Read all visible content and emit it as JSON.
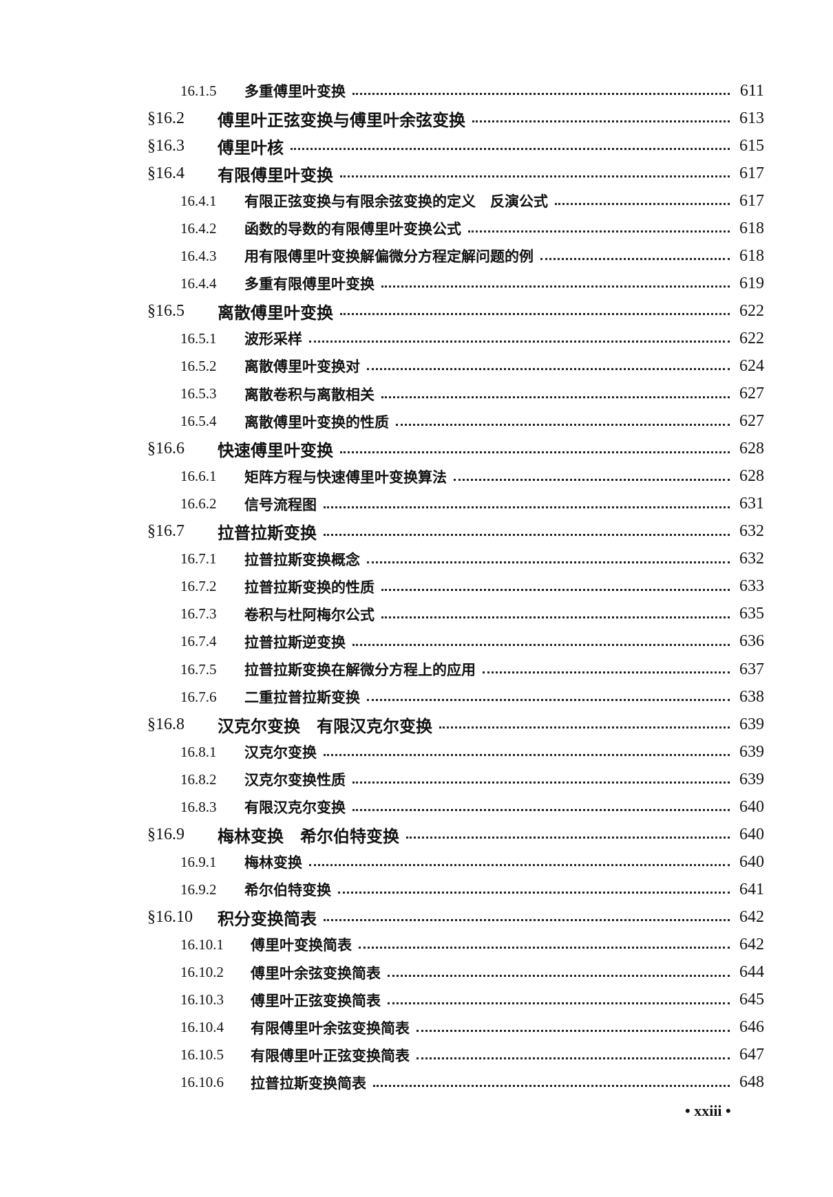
{
  "toc": [
    {
      "level": "sub",
      "num": "16.1.5",
      "title": "多重傅里叶变换",
      "page": "611"
    },
    {
      "level": "section",
      "num": "§16.2",
      "title": "傅里叶正弦变换与傅里叶余弦变换",
      "page": "613"
    },
    {
      "level": "section",
      "num": "§16.3",
      "title": "傅里叶核",
      "page": "615"
    },
    {
      "level": "section",
      "num": "§16.4",
      "title": "有限傅里叶变换",
      "page": "617"
    },
    {
      "level": "sub",
      "num": "16.4.1",
      "title": "有限正弦变换与有限余弦变换的定义　反演公式",
      "page": "617"
    },
    {
      "level": "sub",
      "num": "16.4.2",
      "title": "函数的导数的有限傅里叶变换公式",
      "page": "618"
    },
    {
      "level": "sub",
      "num": "16.4.3",
      "title": "用有限傅里叶变换解偏微分方程定解问题的例",
      "page": "618"
    },
    {
      "level": "sub",
      "num": "16.4.4",
      "title": "多重有限傅里叶变换",
      "page": "619"
    },
    {
      "level": "section",
      "num": "§16.5",
      "title": "离散傅里叶变换",
      "page": "622"
    },
    {
      "level": "sub",
      "num": "16.5.1",
      "title": "波形采样",
      "page": "622"
    },
    {
      "level": "sub",
      "num": "16.5.2",
      "title": "离散傅里叶变换对",
      "page": "624"
    },
    {
      "level": "sub",
      "num": "16.5.3",
      "title": "离散卷积与离散相关",
      "page": "627"
    },
    {
      "level": "sub",
      "num": "16.5.4",
      "title": "离散傅里叶变换的性质",
      "page": "627"
    },
    {
      "level": "section",
      "num": "§16.6",
      "title": "快速傅里叶变换",
      "page": "628"
    },
    {
      "level": "sub",
      "num": "16.6.1",
      "title": "矩阵方程与快速傅里叶变换算法",
      "page": "628"
    },
    {
      "level": "sub",
      "num": "16.6.2",
      "title": "信号流程图",
      "page": "631"
    },
    {
      "level": "section",
      "num": "§16.7",
      "title": "拉普拉斯变换",
      "page": "632"
    },
    {
      "level": "sub",
      "num": "16.7.1",
      "title": "拉普拉斯变换概念",
      "page": "632"
    },
    {
      "level": "sub",
      "num": "16.7.2",
      "title": "拉普拉斯变换的性质",
      "page": "633"
    },
    {
      "level": "sub",
      "num": "16.7.3",
      "title": "卷积与杜阿梅尔公式",
      "page": "635"
    },
    {
      "level": "sub",
      "num": "16.7.4",
      "title": "拉普拉斯逆变换",
      "page": "636"
    },
    {
      "level": "sub",
      "num": "16.7.5",
      "title": "拉普拉斯变换在解微分方程上的应用",
      "page": "637"
    },
    {
      "level": "sub",
      "num": "16.7.6",
      "title": "二重拉普拉斯变换",
      "page": "638"
    },
    {
      "level": "section",
      "num": "§16.8",
      "title": "汉克尔变换　有限汉克尔变换",
      "page": "639"
    },
    {
      "level": "sub",
      "num": "16.8.1",
      "title": "汉克尔变换",
      "page": "639"
    },
    {
      "level": "sub",
      "num": "16.8.2",
      "title": "汉克尔变换性质",
      "page": "639"
    },
    {
      "level": "sub",
      "num": "16.8.3",
      "title": "有限汉克尔变换",
      "page": "640"
    },
    {
      "level": "section",
      "num": "§16.9",
      "title": "梅林变换　希尔伯特变换",
      "page": "640"
    },
    {
      "level": "sub",
      "num": "16.9.1",
      "title": "梅林变换",
      "page": "640"
    },
    {
      "level": "sub",
      "num": "16.9.2",
      "title": "希尔伯特变换",
      "page": "641"
    },
    {
      "level": "section",
      "num": "§16.10",
      "title": "积分变换简表",
      "page": "642"
    },
    {
      "level": "sub",
      "num": "16.10.1",
      "title": "傅里叶变换简表",
      "page": "642"
    },
    {
      "level": "sub",
      "num": "16.10.2",
      "title": "傅里叶余弦变换简表",
      "page": "644"
    },
    {
      "level": "sub",
      "num": "16.10.3",
      "title": "傅里叶正弦变换简表",
      "page": "645"
    },
    {
      "level": "sub",
      "num": "16.10.4",
      "title": "有限傅里叶余弦变换简表",
      "page": "646"
    },
    {
      "level": "sub",
      "num": "16.10.5",
      "title": "有限傅里叶正弦变换简表",
      "page": "647"
    },
    {
      "level": "sub",
      "num": "16.10.6",
      "title": "拉普拉斯变换简表",
      "page": "648"
    }
  ],
  "footer": {
    "page_label": "• xxiii •"
  }
}
